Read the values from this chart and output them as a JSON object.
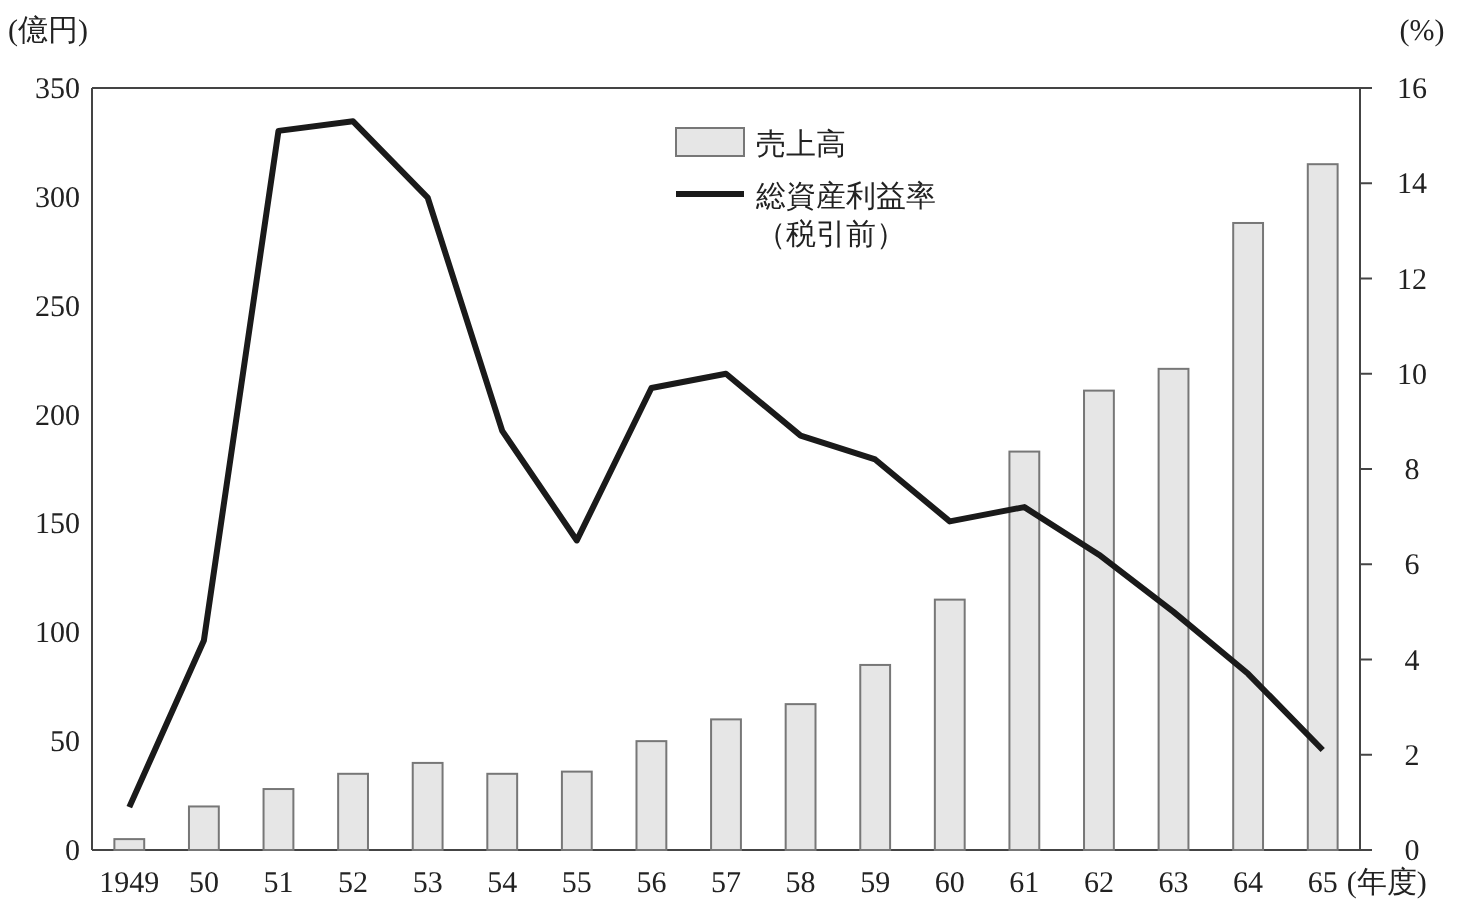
{
  "chart_data": {
    "type": "bar",
    "xlabel": "(年度)",
    "ylabel": "(億円)",
    "y2label": "(%)",
    "categories": [
      "1949",
      "50",
      "51",
      "52",
      "53",
      "54",
      "55",
      "56",
      "57",
      "58",
      "59",
      "60",
      "61",
      "62",
      "63",
      "64",
      "65"
    ],
    "series": [
      {
        "name": "売上高",
        "color": "#e6e6e6",
        "values": [
          5,
          20,
          28,
          35,
          40,
          35,
          36,
          50,
          60,
          67,
          85,
          115,
          183,
          211,
          221,
          288,
          315
        ]
      },
      {
        "name": "総資産利益率（税引前）",
        "type": "line",
        "axis": "y2",
        "color": "#1a1a1a",
        "values": [
          0.9,
          4.4,
          15.1,
          15.3,
          13.7,
          8.8,
          6.5,
          9.7,
          10.0,
          8.7,
          8.2,
          6.9,
          7.2,
          6.2,
          5.0,
          3.7,
          2.1
        ]
      }
    ],
    "ylim": [
      0,
      350
    ],
    "yticks": [
      0,
      50,
      100,
      150,
      200,
      250,
      300,
      350
    ],
    "y2lim": [
      0,
      16
    ],
    "y2ticks": [
      0,
      2,
      4,
      6,
      8,
      10,
      12,
      14,
      16
    ],
    "legend": "top right",
    "grid": false,
    "marker": "none",
    "line_style": "solid"
  }
}
